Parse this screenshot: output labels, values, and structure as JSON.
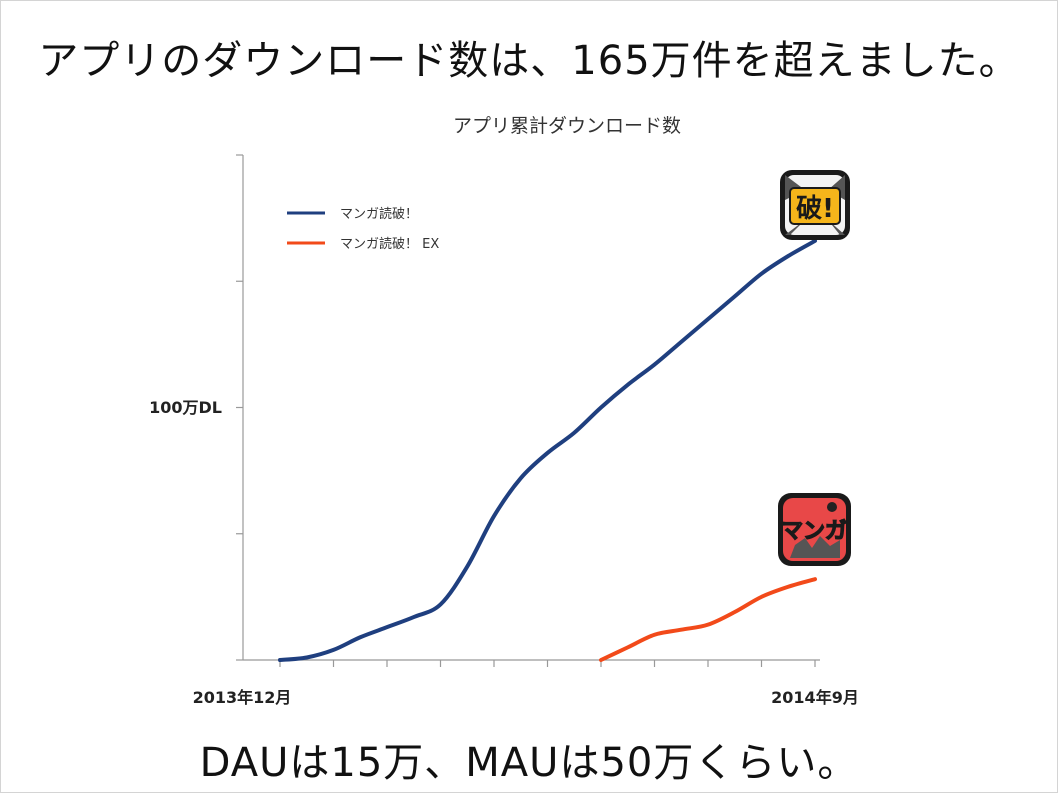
{
  "headline": "アプリのダウンロード数は、165万件を超えました。",
  "footline": "DAUは15万、MAUは50万くらい。",
  "icons": {
    "yabure_text": "破!",
    "manga_text": "マンガ"
  },
  "colors": {
    "series_main": "#1f3f7f",
    "series_ex": "#f24a1a",
    "axis": "#999999"
  },
  "chart_data": {
    "type": "line",
    "title": "アプリ累計ダウンロード数",
    "xlabel": "",
    "ylabel": "",
    "x_tick_labels": [
      "2013年12月",
      "2014年9月"
    ],
    "y_tick_labels": [
      {
        "value": 100,
        "label": "100万DL"
      }
    ],
    "xlim": [
      0,
      10
    ],
    "ylim": [
      0,
      200
    ],
    "unit": "万DL",
    "legend_position": "top-left",
    "grid": false,
    "series": [
      {
        "name": "マンガ読破！",
        "x": [
          0,
          0.5,
          1,
          1.5,
          2,
          2.5,
          3,
          3.5,
          4,
          4.5,
          5,
          5.5,
          6,
          6.5,
          7,
          7.5,
          8,
          8.5,
          9,
          9.5,
          10
        ],
        "values": [
          0,
          1,
          4,
          9,
          13,
          17,
          22,
          37,
          57,
          72,
          82,
          90,
          100,
          109,
          117,
          126,
          135,
          144,
          153,
          160,
          166
        ]
      },
      {
        "name": "マンガ読破！ EX",
        "x": [
          6,
          6.5,
          7,
          7.5,
          8,
          8.5,
          9,
          9.5,
          10
        ],
        "values": [
          0,
          5,
          10,
          12,
          14,
          19,
          25,
          29,
          32
        ]
      }
    ]
  }
}
